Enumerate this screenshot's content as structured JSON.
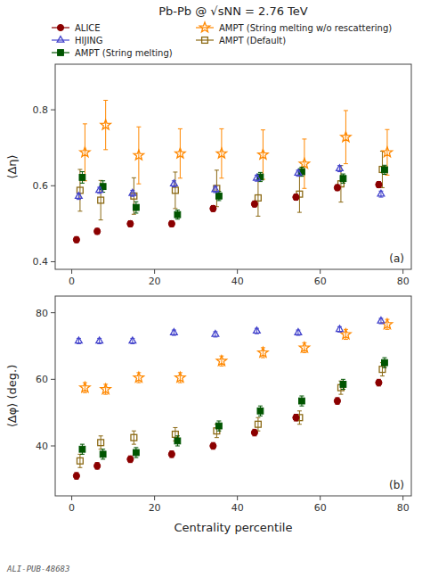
{
  "chart_data": [
    {
      "type": "scatter",
      "title": "Pb-Pb @ √sNN = 2.76 TeV",
      "ylabel": "⟨Δη⟩",
      "x": [
        2,
        7,
        15,
        25,
        35,
        45,
        55,
        65,
        75
      ],
      "xlim": [
        -4,
        82
      ],
      "xticks": [
        0,
        20,
        40,
        60,
        80
      ],
      "ylim": [
        0.38,
        0.92
      ],
      "yticks": [
        0.4,
        0.6,
        0.8
      ],
      "grid": false,
      "legend": "top",
      "annotations": [
        "(a)"
      ],
      "series": [
        {
          "name": "ALICE",
          "color": "#8B0000",
          "marker": "circle",
          "values": [
            0.458,
            0.48,
            0.5,
            0.5,
            0.54,
            0.552,
            0.57,
            0.595,
            0.603
          ],
          "errors": [
            0.008,
            0.008,
            0.008,
            0.008,
            0.008,
            0.008,
            0.008,
            0.008,
            0.008
          ]
        },
        {
          "name": "HIJING",
          "color": "#4444CC",
          "marker": "open-triangle",
          "values": [
            0.572,
            0.588,
            0.58,
            0.605,
            0.59,
            0.62,
            0.633,
            0.645,
            0.578
          ],
          "errors": [
            0.008,
            0.008,
            0.008,
            0.008,
            0.008,
            0.008,
            0.008,
            0.008,
            0.008
          ]
        },
        {
          "name": "AMPT (String melting)",
          "color": "#005500",
          "marker": "square",
          "values": [
            0.622,
            0.598,
            0.543,
            0.524,
            0.573,
            0.623,
            0.637,
            0.619,
            0.642
          ],
          "errors": [
            0.015,
            0.015,
            0.015,
            0.012,
            0.012,
            0.012,
            0.012,
            0.012,
            0.012
          ]
        },
        {
          "name": "AMPT (String melting w/o rescattering)",
          "color": "#FF8800",
          "marker": "open-star",
          "values": [
            0.688,
            0.76,
            0.68,
            0.685,
            0.685,
            0.682,
            0.658,
            0.728,
            0.688
          ],
          "errors": [
            0.075,
            0.065,
            0.075,
            0.065,
            0.065,
            0.065,
            0.065,
            0.07,
            0.06
          ]
        },
        {
          "name": "AMPT (Default)",
          "color": "#8B6914",
          "marker": "open-square",
          "values": [
            0.588,
            0.562,
            0.573,
            0.588,
            0.593,
            0.568,
            0.578,
            0.605,
            0.643
          ],
          "errors": [
            0.055,
            0.052,
            0.048,
            0.048,
            0.048,
            0.048,
            0.048,
            0.048,
            0.048
          ]
        }
      ]
    },
    {
      "type": "scatter",
      "xlabel": "Centrality percentile",
      "ylabel": "⟨Δφ⟩ (deg.)",
      "x": [
        2,
        7,
        15,
        25,
        35,
        45,
        55,
        65,
        75
      ],
      "xlim": [
        -4,
        82
      ],
      "xticks": [
        0,
        20,
        40,
        60,
        80
      ],
      "ylim": [
        25,
        85
      ],
      "yticks": [
        40,
        60,
        80
      ],
      "grid": false,
      "annotations": [
        "(b)",
        "ALI-PUB-48683"
      ],
      "series": [
        {
          "name": "ALICE",
          "color": "#8B0000",
          "marker": "circle",
          "values": [
            31.0,
            34.0,
            36.0,
            37.5,
            40.0,
            44.0,
            48.5,
            53.5,
            59.0
          ],
          "errors": [
            1.0,
            1.0,
            1.0,
            1.0,
            1.0,
            1.0,
            1.0,
            1.0,
            1.0
          ]
        },
        {
          "name": "HIJING",
          "color": "#4444CC",
          "marker": "open-triangle",
          "values": [
            71.5,
            71.5,
            71.5,
            74.0,
            73.5,
            74.5,
            74.0,
            75.0,
            77.5
          ],
          "errors": [
            0.8,
            0.8,
            0.8,
            0.8,
            0.8,
            0.8,
            0.8,
            0.8,
            0.8
          ]
        },
        {
          "name": "AMPT (String melting)",
          "color": "#005500",
          "marker": "square",
          "values": [
            39.0,
            37.5,
            38.0,
            41.5,
            46.0,
            50.5,
            53.5,
            58.5,
            65.0
          ],
          "errors": [
            1.5,
            1.5,
            1.5,
            1.5,
            1.5,
            1.5,
            1.5,
            1.5,
            1.5
          ]
        },
        {
          "name": "AMPT (String melting w/o rescattering)",
          "color": "#FF8800",
          "marker": "open-star",
          "values": [
            57.5,
            57.0,
            60.5,
            60.5,
            65.5,
            68.0,
            69.5,
            73.5,
            76.5
          ],
          "errors": [
            1.5,
            1.5,
            1.5,
            1.5,
            1.5,
            1.5,
            1.5,
            1.5,
            1.5
          ]
        },
        {
          "name": "AMPT (Default)",
          "color": "#8B6914",
          "marker": "open-square",
          "values": [
            35.5,
            41.0,
            42.5,
            43.5,
            44.5,
            46.5,
            48.5,
            57.5,
            63.0
          ],
          "errors": [
            2.0,
            2.0,
            2.0,
            2.0,
            2.0,
            2.0,
            2.0,
            2.0,
            2.0
          ]
        }
      ]
    }
  ]
}
